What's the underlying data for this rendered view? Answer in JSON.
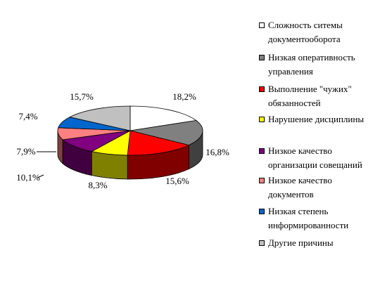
{
  "chart_data": {
    "type": "pie",
    "title": "",
    "categories": [
      "Сложность ситемы\nдокументооборота",
      "Низкая оперативность\nуправления",
      "Выполнение \"чужих\"\nобязанностей",
      "Нарушение дисциплины",
      "Низкое качество\nорганизации совещаний",
      "Низкое качество\nдокументов",
      "Низкая степень\nинформированности",
      "Другие причины"
    ],
    "values": [
      18.2,
      16.8,
      15.6,
      8.3,
      10.1,
      7.9,
      7.4,
      15.7
    ],
    "labels": [
      "18,2%",
      "16,8%",
      "15,6%",
      "8,3%",
      "10,1%",
      "7,9%",
      "7,4%",
      "15,7%"
    ],
    "colors": [
      "#FFFFFF",
      "#808080",
      "#FF0000",
      "#FFFF00",
      "#800080",
      "#FF8080",
      "#0066CC",
      "#C0C0C0"
    ],
    "legend_position": "right",
    "style": "3d"
  }
}
